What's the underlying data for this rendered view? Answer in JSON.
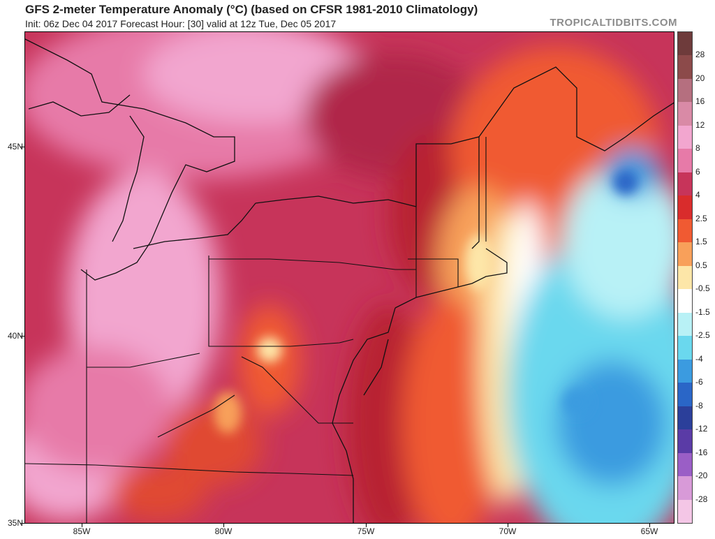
{
  "header": {
    "title": "GFS 2-meter Temperature Anomaly (°C) (based on CFSR 1981-2010 Climatology)",
    "subtitle": "Init: 06z Dec 04 2017   Forecast Hour: [30]   valid at 12z Tue, Dec 05 2017",
    "brand": "TROPICALTIDBITS.COM"
  },
  "axes": {
    "lat_labels": [
      "45N",
      "40N",
      "35N"
    ],
    "lon_labels": [
      "85W",
      "80W",
      "75W",
      "70W",
      "65W"
    ]
  },
  "legend": {
    "labels": [
      "28",
      "20",
      "16",
      "12",
      "8",
      "6",
      "4",
      "2.5",
      "1.5",
      "0.5",
      "-0.5",
      "-1.5",
      "-2.5",
      "-4",
      "-6",
      "-8",
      "-12",
      "-16",
      "-20",
      "-28"
    ],
    "colors": [
      "#6e3b3b",
      "#8c4a4a",
      "#b56f7f",
      "#d98aa6",
      "#f2a6cf",
      "#e77aa8",
      "#c7345a",
      "#d92c2c",
      "#f05a32",
      "#f8a05a",
      "#fde6a8",
      "#ffffff",
      "#b8f1f6",
      "#6ad8ee",
      "#3b9be0",
      "#2a66c7",
      "#2b3f9a",
      "#5a3ba6",
      "#9a5ec6",
      "#d89ad8",
      "#f4c6e6"
    ]
  },
  "colors": {
    "positive_extreme": "#6e3b3b",
    "positive_high": "#c7345a",
    "positive_mid": "#f05a32",
    "near_zero": "#ffffff",
    "negative_mild": "#6ad8ee",
    "negative_strong": "#2a66c7"
  }
}
